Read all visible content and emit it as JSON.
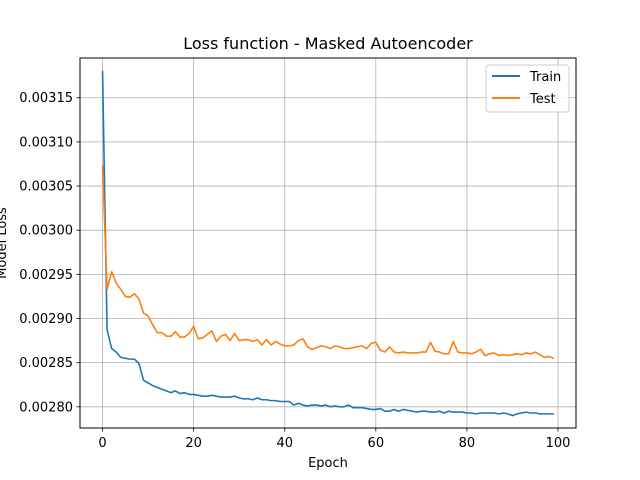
{
  "chart_data": {
    "type": "line",
    "title": "Loss function - Masked Autoencoder",
    "xlabel": "Epoch",
    "ylabel": "Model Loss",
    "xlim": [
      -4.95,
      103.95
    ],
    "ylim": [
      0.002776,
      0.003195
    ],
    "xticks": [
      0,
      20,
      40,
      60,
      80,
      100
    ],
    "xtick_labels": [
      "0",
      "20",
      "40",
      "60",
      "80",
      "100"
    ],
    "yticks": [
      0.0028,
      0.00285,
      0.0029,
      0.00295,
      0.003,
      0.00305,
      0.0031,
      0.00315
    ],
    "ytick_labels": [
      "0.00280",
      "0.00285",
      "0.00290",
      "0.00295",
      "0.00300",
      "0.00305",
      "0.00310",
      "0.00315"
    ],
    "grid": true,
    "legend_position": "top-right",
    "series": [
      {
        "name": "Train",
        "color": "#1f77b4",
        "x": [
          0,
          1,
          2,
          3,
          4,
          5,
          6,
          7,
          8,
          9,
          10,
          11,
          12,
          13,
          14,
          15,
          16,
          17,
          18,
          19,
          20,
          21,
          22,
          23,
          24,
          25,
          26,
          27,
          28,
          29,
          30,
          31,
          32,
          33,
          34,
          35,
          36,
          37,
          38,
          39,
          40,
          41,
          42,
          43,
          44,
          45,
          46,
          47,
          48,
          49,
          50,
          51,
          52,
          53,
          54,
          55,
          56,
          57,
          58,
          59,
          60,
          61,
          62,
          63,
          64,
          65,
          66,
          67,
          68,
          69,
          70,
          71,
          72,
          73,
          74,
          75,
          76,
          77,
          78,
          79,
          80,
          81,
          82,
          83,
          84,
          85,
          86,
          87,
          88,
          89,
          90,
          91,
          92,
          93,
          94,
          95,
          96,
          97,
          98,
          99
        ],
        "values": [
          0.00318,
          0.002887,
          0.002866,
          0.002862,
          0.002856,
          0.002855,
          0.002854,
          0.002854,
          0.002849,
          0.00283,
          0.002827,
          0.002824,
          0.002822,
          0.00282,
          0.002818,
          0.002816,
          0.002818,
          0.002815,
          0.002816,
          0.002814,
          0.002814,
          0.002813,
          0.002812,
          0.002812,
          0.002813,
          0.002812,
          0.002811,
          0.002811,
          0.002811,
          0.002812,
          0.00281,
          0.002809,
          0.002809,
          0.002808,
          0.00281,
          0.002808,
          0.002808,
          0.002807,
          0.002807,
          0.002806,
          0.002806,
          0.002806,
          0.002802,
          0.002804,
          0.002802,
          0.002801,
          0.002802,
          0.002802,
          0.002801,
          0.002802,
          0.0028,
          0.002801,
          0.0028,
          0.0028,
          0.002802,
          0.002799,
          0.002799,
          0.002799,
          0.002798,
          0.002797,
          0.002797,
          0.002798,
          0.002795,
          0.002795,
          0.002797,
          0.002795,
          0.002797,
          0.002796,
          0.002795,
          0.002794,
          0.002795,
          0.002795,
          0.002794,
          0.002794,
          0.002795,
          0.002793,
          0.002795,
          0.002794,
          0.002794,
          0.002794,
          0.002793,
          0.002793,
          0.002792,
          0.002793,
          0.002793,
          0.002793,
          0.002793,
          0.002792,
          0.002793,
          0.002792,
          0.00279,
          0.002792,
          0.002793,
          0.002794,
          0.002793,
          0.002793,
          0.002792,
          0.002792,
          0.002792,
          0.002792
        ]
      },
      {
        "name": "Test",
        "color": "#ff7f0e",
        "x": [
          0,
          1,
          2,
          3,
          4,
          5,
          6,
          7,
          8,
          9,
          10,
          11,
          12,
          13,
          14,
          15,
          16,
          17,
          18,
          19,
          20,
          21,
          22,
          23,
          24,
          25,
          26,
          27,
          28,
          29,
          30,
          31,
          32,
          33,
          34,
          35,
          36,
          37,
          38,
          39,
          40,
          41,
          42,
          43,
          44,
          45,
          46,
          47,
          48,
          49,
          50,
          51,
          52,
          53,
          54,
          55,
          56,
          57,
          58,
          59,
          60,
          61,
          62,
          63,
          64,
          65,
          66,
          67,
          68,
          69,
          70,
          71,
          72,
          73,
          74,
          75,
          76,
          77,
          78,
          79,
          80,
          81,
          82,
          83,
          84,
          85,
          86,
          87,
          88,
          89,
          90,
          91,
          92,
          93,
          94,
          95,
          96,
          97,
          98,
          99
        ],
        "values": [
          0.003073,
          0.002933,
          0.002953,
          0.00294,
          0.002933,
          0.002925,
          0.002924,
          0.002928,
          0.002922,
          0.002906,
          0.002903,
          0.002893,
          0.002884,
          0.002884,
          0.00288,
          0.00288,
          0.002885,
          0.002879,
          0.002879,
          0.002883,
          0.002891,
          0.002877,
          0.002878,
          0.002882,
          0.002886,
          0.002874,
          0.00288,
          0.002882,
          0.002875,
          0.002883,
          0.002875,
          0.002876,
          0.002876,
          0.002874,
          0.002876,
          0.00287,
          0.002876,
          0.00287,
          0.002874,
          0.002871,
          0.002869,
          0.002869,
          0.00287,
          0.002875,
          0.002877,
          0.002868,
          0.002865,
          0.002867,
          0.002869,
          0.002868,
          0.002866,
          0.002869,
          0.002868,
          0.002866,
          0.002866,
          0.002867,
          0.002868,
          0.002869,
          0.002866,
          0.002872,
          0.002873,
          0.002864,
          0.002862,
          0.002868,
          0.002862,
          0.002861,
          0.002862,
          0.002861,
          0.002861,
          0.002861,
          0.002862,
          0.002862,
          0.002873,
          0.002863,
          0.002862,
          0.00286,
          0.00286,
          0.002874,
          0.002862,
          0.002861,
          0.002861,
          0.00286,
          0.002862,
          0.002865,
          0.002858,
          0.00286,
          0.002861,
          0.002858,
          0.002859,
          0.002858,
          0.002859,
          0.00286,
          0.002859,
          0.002861,
          0.00286,
          0.002862,
          0.002859,
          0.002856,
          0.002857,
          0.002855
        ]
      }
    ]
  }
}
